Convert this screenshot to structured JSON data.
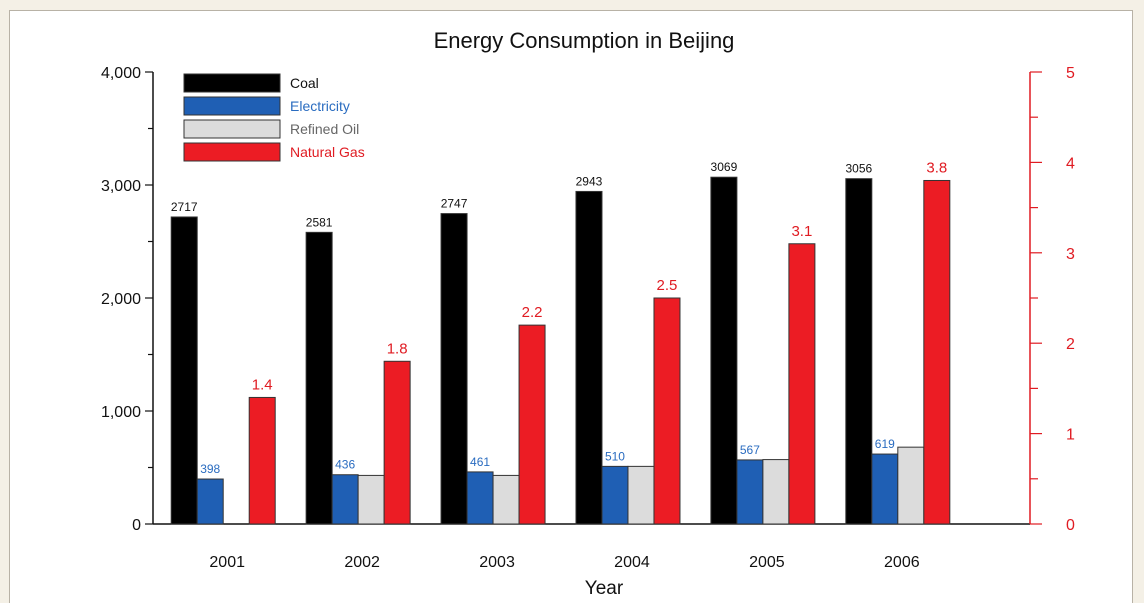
{
  "chart_data": {
    "type": "bar",
    "title": "Energy Consumption in Beijing",
    "xlabel": "Year",
    "ylabel": "",
    "categories": [
      "2001",
      "2002",
      "2003",
      "2004",
      "2005",
      "2006"
    ],
    "ylim": [
      0,
      4000
    ],
    "y2lim": [
      0,
      5
    ],
    "yticks": [
      "0",
      "1,000",
      "2,000",
      "3,000",
      "4,000"
    ],
    "y2ticks": [
      "0",
      "1",
      "2",
      "3",
      "4",
      "5"
    ],
    "grid": false,
    "legend_position": "top-left",
    "series": [
      {
        "name": "Coal",
        "color": "#000000",
        "axis": "left",
        "values": [
          2717,
          2581,
          2747,
          2943,
          3069,
          3056
        ],
        "labels": [
          "2717",
          "2581",
          "2747",
          "2943",
          "3069",
          "3056"
        ],
        "label_color": "#111111"
      },
      {
        "name": "Electricity",
        "color": "#1f5fb4",
        "axis": "left",
        "values": [
          398,
          436,
          461,
          510,
          567,
          619
        ],
        "labels": [
          "398",
          "436",
          "461",
          "510",
          "567",
          "619"
        ],
        "label_color": "#2a6cc0"
      },
      {
        "name": "Refined Oil",
        "color": "#dcdcdc",
        "axis": "left",
        "values": [
          null,
          430,
          430,
          510,
          570,
          680
        ],
        "labels": [],
        "label_color": "#555555"
      },
      {
        "name": "Natural Gas",
        "color": "#ec1c24",
        "axis": "right",
        "values": [
          1.4,
          1.8,
          2.2,
          2.5,
          3.1,
          3.8
        ],
        "labels": [
          "1.4",
          "1.8",
          "2.2",
          "2.5",
          "3.1",
          "3.8"
        ],
        "label_color": "#e01b22"
      }
    ]
  },
  "legend_text_colors": [
    "#111111",
    "#2a6cc0",
    "#666666",
    "#e01b22"
  ]
}
